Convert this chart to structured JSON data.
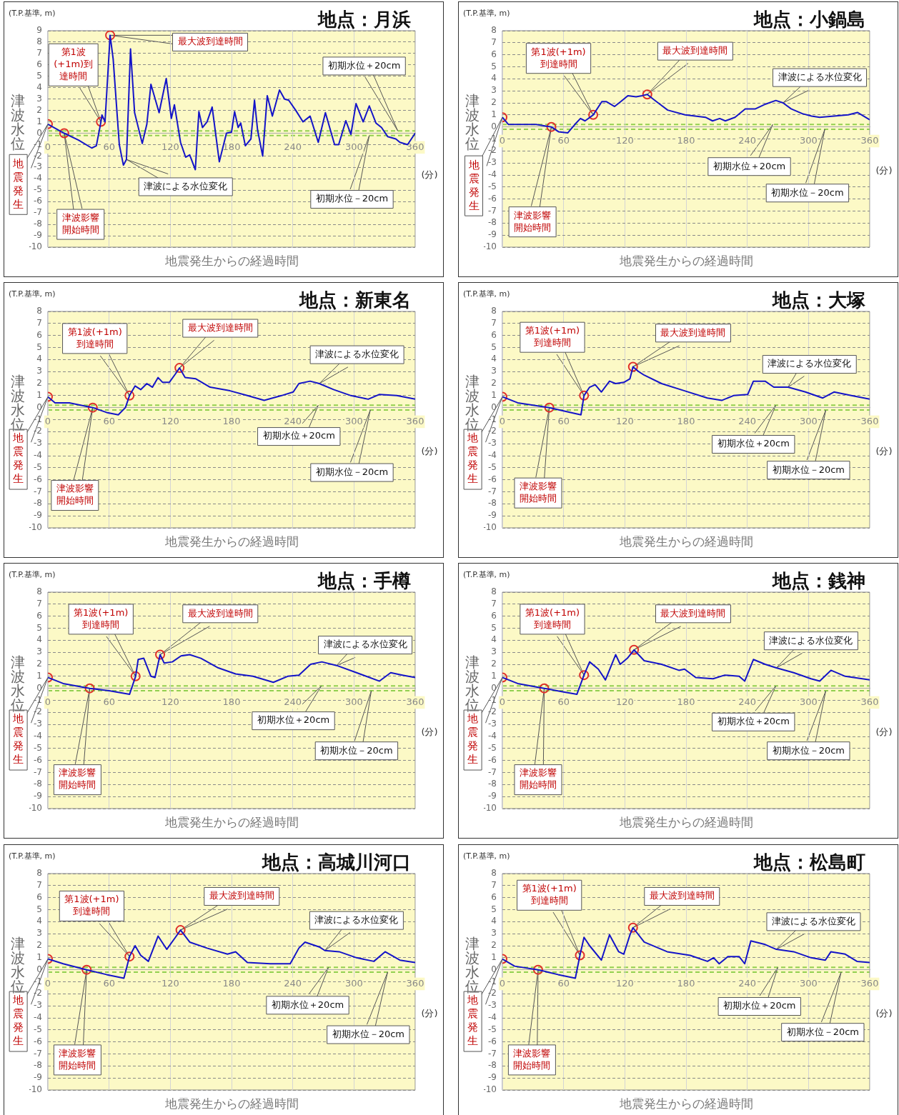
{
  "chart_data": [
    {
      "type": "line",
      "title": "地点：月浜",
      "ylabel": "津波水位",
      "xlabel": "地震発生からの経過時間",
      "xlim": [
        0,
        360
      ],
      "xticks": [
        0,
        60,
        120,
        180,
        240,
        300,
        360
      ],
      "ylim": [
        -10,
        9
      ],
      "yticks": [
        -10,
        -9,
        -8,
        -7,
        -6,
        -5,
        -4,
        -3,
        -2,
        -1,
        0,
        1,
        2,
        3,
        4,
        5,
        6,
        7,
        8,
        9
      ],
      "grid": true,
      "series": [
        {
          "type": "line",
          "color": "#1414c8",
          "x": [
            0,
            16,
            30,
            43,
            47.5,
            52,
            53,
            56,
            61,
            64,
            70,
            74,
            77,
            81,
            85,
            92.5,
            97,
            101,
            109,
            116,
            121,
            124,
            130,
            135,
            139,
            144.5,
            148,
            151.5,
            156,
            161,
            168,
            175,
            180,
            183,
            186.5,
            189,
            193.5,
            199,
            202.5,
            205.5,
            210.5,
            215,
            220,
            227,
            232,
            236,
            243,
            250,
            257,
            265,
            272,
            281,
            285,
            292,
            297,
            302,
            309,
            315,
            321.5,
            327,
            333,
            341,
            345,
            352.5,
            360
          ],
          "values": [
            0.8,
            0,
            -0.6,
            -1.3,
            -1.1,
            1.0,
            1.6,
            1.0,
            8.6,
            6.5,
            -1.0,
            -2.8,
            -2.3,
            7.4,
            1.8,
            -0.9,
            0.8,
            4.3,
            1.8,
            4.8,
            1.3,
            2.5,
            -0.8,
            -2.1,
            -1.9,
            -3.2,
            1.9,
            0.5,
            1.0,
            2.3,
            -2.5,
            0,
            0.1,
            1.9,
            0.5,
            0.9,
            -1.1,
            -0.5,
            2.9,
            0.3,
            -2.0,
            3.3,
            1.5,
            3.8,
            3.0,
            2.9,
            2.0,
            1.0,
            1.5,
            -0.8,
            1.8,
            -1.0,
            -1.0,
            1.1,
            -0.1,
            2.6,
            1.0,
            2.4,
            0.9,
            0.5,
            -0.3,
            -0.5,
            -0.8,
            -1.0,
            0
          ]
        },
        {
          "type": "scatter",
          "color": "#e0302a",
          "marker": "circle",
          "x": [
            0,
            16,
            52,
            61
          ],
          "values": [
            0.8,
            0,
            1.0,
            8.6
          ]
        }
      ],
      "ref_lines": [
        {
          "axis": "y",
          "value": 0.2,
          "color": "#92d050",
          "line_style": "dashed"
        },
        {
          "axis": "y",
          "value": -0.2,
          "color": "#92d050",
          "line_style": "dashed"
        }
      ],
      "annotations": [
        "地震発生",
        "津波影響開始時間",
        "第1波(+1m)到達時間",
        "最大波到達時間",
        {
          "text": "津波による水位変化",
          "x": 77,
          "y": -2.3
        },
        "(T.P.基準, m)",
        "(分)",
        "初期水位＋20cm",
        "初期水位－20cm"
      ]
    },
    {
      "type": "line",
      "title": "地点：小鍋島",
      "ylabel": "津波水位",
      "xlabel": "地震発生からの経過時間",
      "xlim": [
        0,
        360
      ],
      "xticks": [
        0,
        60,
        120,
        180,
        240,
        300,
        360
      ],
      "ylim": [
        -10,
        8
      ],
      "yticks": [
        -10,
        -9,
        -8,
        -7,
        -6,
        -5,
        -4,
        -3,
        -2,
        -1,
        0,
        1,
        2,
        3,
        4,
        5,
        6,
        7,
        8
      ],
      "grid": true,
      "series": [
        {
          "type": "line",
          "color": "#1414c8",
          "x": [
            0,
            6,
            16,
            33,
            48,
            55,
            64,
            71,
            76.5,
            81,
            89,
            97.5,
            102,
            110,
            116,
            123,
            131,
            137,
            142,
            151,
            162,
            179,
            199,
            206,
            213,
            218.5,
            228,
            238,
            248,
            258,
            268,
            275,
            283,
            294,
            303,
            311,
            325,
            339,
            348,
            360
          ],
          "values": [
            0.8,
            0.2,
            0.2,
            0.2,
            0,
            -0.4,
            -0.5,
            0.2,
            0.7,
            0.5,
            1.0,
            2.1,
            2.1,
            1.7,
            2.1,
            2.6,
            2.5,
            2.6,
            2.7,
            2.1,
            1.4,
            1.0,
            0.8,
            0.5,
            0.7,
            0.5,
            0.8,
            1.5,
            1.5,
            1.9,
            2.2,
            2.0,
            1.5,
            1.1,
            0.9,
            0.8,
            0.9,
            1.0,
            1.2,
            0.6
          ]
        },
        {
          "type": "scatter",
          "color": "#e0302a",
          "marker": "circle",
          "x": [
            0,
            48,
            89,
            142
          ],
          "values": [
            0.8,
            0,
            1.0,
            2.7
          ]
        }
      ],
      "ref_lines": [
        {
          "axis": "y",
          "value": 0.2,
          "color": "#92d050",
          "line_style": "dashed"
        },
        {
          "axis": "y",
          "value": -0.2,
          "color": "#92d050",
          "line_style": "dashed"
        }
      ],
      "annotations": [
        "地震発生",
        "津波影響開始時間",
        "第1波(+1m)到達時間",
        "最大波到達時間",
        {
          "text": "津波による水位変化",
          "x": 275,
          "y": 2.0
        },
        "(T.P.基準, m)",
        "(分)",
        "初期水位＋20cm",
        "初期水位－20cm"
      ]
    },
    {
      "type": "line",
      "title": "地点：新東名",
      "ylabel": "津波水位",
      "xlabel": "地震発生からの経過時間",
      "xlim": [
        0,
        360
      ],
      "xticks": [
        0,
        60,
        120,
        180,
        240,
        300,
        360
      ],
      "ylim": [
        -10,
        8
      ],
      "yticks": [
        -10,
        -9,
        -8,
        -7,
        -6,
        -5,
        -4,
        -3,
        -2,
        -1,
        0,
        1,
        2,
        3,
        4,
        5,
        6,
        7,
        8
      ],
      "grid": true,
      "series": [
        {
          "type": "line",
          "color": "#1414c8",
          "x": [
            0,
            7,
            21,
            44,
            57.5,
            69,
            76,
            80,
            85.5,
            91,
            97,
            102.5,
            108,
            112.5,
            119,
            125,
            129,
            134.5,
            145,
            159,
            178.5,
            195.5,
            212,
            229,
            240.5,
            246,
            257,
            266,
            280,
            297,
            314,
            325,
            342,
            360
          ],
          "values": [
            0.9,
            0.4,
            0.4,
            0,
            -0.4,
            -0.6,
            0,
            1.0,
            1.8,
            1.5,
            2.0,
            1.7,
            2.5,
            2.1,
            2.1,
            2.8,
            3.3,
            2.5,
            2.4,
            1.7,
            1.4,
            1.0,
            0.6,
            1.0,
            1.3,
            2.0,
            2.2,
            2.0,
            1.5,
            1.0,
            0.7,
            1.1,
            1.0,
            0.7
          ]
        },
        {
          "type": "scatter",
          "color": "#e0302a",
          "marker": "circle",
          "x": [
            0,
            44,
            80,
            129
          ],
          "values": [
            0.9,
            0,
            1.0,
            3.3
          ]
        }
      ],
      "ref_lines": [
        {
          "axis": "y",
          "value": 0.2,
          "color": "#92d050",
          "line_style": "dashed"
        },
        {
          "axis": "y",
          "value": -0.2,
          "color": "#92d050",
          "line_style": "dashed"
        }
      ],
      "annotations": [
        "地震発生",
        "津波影響開始時間",
        "第1波(+1m)到達時間",
        "最大波到達時間",
        {
          "text": "津波による水位変化",
          "x": 266,
          "y": 2.0
        },
        "(T.P.基準, m)",
        "(分)",
        "初期水位＋20cm",
        "初期水位－20cm"
      ]
    },
    {
      "type": "line",
      "title": "地点：大塚",
      "ylabel": "津波水位",
      "xlabel": "地震発生からの経過時間",
      "xlim": [
        0,
        360
      ],
      "xticks": [
        0,
        60,
        120,
        180,
        240,
        300,
        360
      ],
      "ylim": [
        -10,
        8
      ],
      "yticks": [
        -10,
        -9,
        -8,
        -7,
        -6,
        -5,
        -4,
        -3,
        -2,
        -1,
        0,
        1,
        2,
        3,
        4,
        5,
        6,
        7,
        8
      ],
      "grid": true,
      "series": [
        {
          "type": "line",
          "color": "#1414c8",
          "x": [
            0,
            15,
            46,
            71.5,
            77,
            80,
            85.5,
            91,
            97,
            105,
            111,
            119,
            125,
            128,
            133.5,
            139,
            156,
            178.5,
            201,
            215,
            226.5,
            240.5,
            246,
            257.5,
            266,
            280,
            297,
            314,
            325,
            342,
            360
          ],
          "values": [
            0.9,
            0.4,
            0,
            -0.5,
            -0.6,
            1.0,
            1.7,
            1.9,
            1.3,
            2.2,
            2.0,
            2.1,
            2.4,
            3.4,
            3.0,
            2.7,
            2.0,
            1.4,
            0.8,
            0.6,
            1.0,
            1.1,
            2.2,
            2.2,
            1.7,
            1.7,
            1.3,
            0.8,
            1.3,
            1.0,
            0.7
          ]
        },
        {
          "type": "scatter",
          "color": "#e0302a",
          "marker": "circle",
          "x": [
            0,
            46,
            80,
            128
          ],
          "values": [
            0.9,
            0,
            1.0,
            3.4
          ]
        }
      ],
      "ref_lines": [
        {
          "axis": "y",
          "value": 0.2,
          "color": "#92d050",
          "line_style": "dashed"
        },
        {
          "axis": "y",
          "value": -0.2,
          "color": "#92d050",
          "line_style": "dashed"
        }
      ],
      "annotations": [
        "地震発生",
        "津波影響開始時間",
        "第1波(+1m)到達時間",
        "最大波到達時間",
        {
          "text": "津波による水位変化",
          "x": 280,
          "y": 1.7
        },
        "(T.P.基準, m)",
        "(分)",
        "初期水位＋20cm",
        "初期水位－20cm"
      ]
    },
    {
      "type": "line",
      "title": "地点：手樽",
      "ylabel": "津波水位",
      "xlabel": "地震発生からの経過時間",
      "xlim": [
        0,
        360
      ],
      "xticks": [
        0,
        60,
        120,
        180,
        240,
        300,
        360
      ],
      "ylim": [
        -10,
        8
      ],
      "yticks": [
        -10,
        -9,
        -8,
        -7,
        -6,
        -5,
        -4,
        -3,
        -2,
        -1,
        0,
        1,
        2,
        3,
        4,
        5,
        6,
        7,
        8
      ],
      "grid": true,
      "series": [
        {
          "type": "line",
          "color": "#1414c8",
          "x": [
            0,
            15,
            41,
            60,
            80,
            86,
            88.5,
            94,
            101,
            105,
            110,
            114,
            122,
            130.5,
            139,
            150,
            167,
            184,
            201,
            221,
            235,
            246,
            257.5,
            268.5,
            283,
            302.5,
            325,
            336,
            347.5,
            360
          ],
          "values": [
            0.9,
            0.4,
            0,
            -0.2,
            -0.5,
            1.0,
            2.4,
            2.5,
            1.0,
            0.9,
            2.8,
            2.1,
            2.2,
            2.7,
            2.8,
            2.5,
            1.7,
            1.2,
            1.0,
            0.5,
            1.0,
            1.1,
            2.0,
            2.2,
            1.9,
            1.3,
            0.6,
            1.3,
            1.1,
            0.9
          ]
        },
        {
          "type": "scatter",
          "color": "#e0302a",
          "marker": "circle",
          "x": [
            0,
            41,
            86,
            110
          ],
          "values": [
            0.9,
            0,
            1.0,
            2.8
          ]
        }
      ],
      "ref_lines": [
        {
          "axis": "y",
          "value": 0.2,
          "color": "#92d050",
          "line_style": "dashed"
        },
        {
          "axis": "y",
          "value": -0.2,
          "color": "#92d050",
          "line_style": "dashed"
        }
      ],
      "annotations": [
        "地震発生",
        "津波影響開始時間",
        "第1波(+1m)到達時間",
        "最大波到達時間",
        {
          "text": "津波による水位変化",
          "x": 283,
          "y": 1.9
        },
        "(T.P.基準, m)",
        "(分)",
        "初期水位＋20cm",
        "初期水位－20cm"
      ]
    },
    {
      "type": "line",
      "title": "地点：銭神",
      "ylabel": "津波水位",
      "xlabel": "地震発生からの経過時間",
      "xlim": [
        0,
        360
      ],
      "xticks": [
        0,
        60,
        120,
        180,
        240,
        300,
        360
      ],
      "ylim": [
        -10,
        8
      ],
      "yticks": [
        -10,
        -9,
        -8,
        -7,
        -6,
        -5,
        -4,
        -3,
        -2,
        -1,
        0,
        1,
        2,
        3,
        4,
        5,
        6,
        7,
        8
      ],
      "grid": true,
      "series": [
        {
          "type": "line",
          "color": "#1414c8",
          "x": [
            0,
            15,
            41,
            60,
            73,
            80,
            85.5,
            94,
            101,
            111,
            115.5,
            122.5,
            129,
            139,
            156,
            173,
            178.5,
            189.5,
            206.5,
            218,
            232,
            237.5,
            246,
            257.5,
            268.5,
            285.5,
            302.5,
            311,
            322,
            336,
            360
          ],
          "values": [
            0.9,
            0.4,
            0,
            -0.3,
            -0.5,
            1.1,
            2.2,
            1.6,
            0.7,
            2.8,
            2.0,
            2.5,
            3.2,
            2.3,
            2.0,
            1.5,
            1.6,
            0.9,
            0.8,
            1.1,
            1.0,
            0.6,
            2.4,
            2.0,
            1.7,
            1.3,
            0.8,
            0.6,
            1.5,
            1.0,
            0.7
          ]
        },
        {
          "type": "scatter",
          "color": "#e0302a",
          "marker": "circle",
          "x": [
            0,
            41,
            80,
            129
          ],
          "values": [
            0.9,
            0,
            1.1,
            3.2
          ]
        }
      ],
      "ref_lines": [
        {
          "axis": "y",
          "value": 0.2,
          "color": "#92d050",
          "line_style": "dashed"
        },
        {
          "axis": "y",
          "value": -0.2,
          "color": "#92d050",
          "line_style": "dashed"
        }
      ],
      "annotations": [
        "地震発生",
        "津波影響開始時間",
        "第1波(+1m)到達時間",
        "最大波到達時間",
        {
          "text": "津波による水位変化",
          "x": 268.5,
          "y": 1.7
        },
        "(T.P.基準, m)",
        "(分)",
        "初期水位＋20cm",
        "初期水位－20cm"
      ]
    },
    {
      "type": "line",
      "title": "地点：高城川河口",
      "ylabel": "津波水位",
      "xlabel": "地震発生からの経過時間",
      "xlim": [
        0,
        360
      ],
      "xticks": [
        0,
        60,
        120,
        180,
        240,
        300,
        360
      ],
      "ylim": [
        -10,
        8
      ],
      "yticks": [
        -10,
        -9,
        -8,
        -7,
        -6,
        -5,
        -4,
        -3,
        -2,
        -1,
        0,
        1,
        2,
        3,
        4,
        5,
        6,
        7,
        8
      ],
      "grid": true,
      "series": [
        {
          "type": "line",
          "color": "#1414c8",
          "x": [
            0,
            15,
            38,
            57.5,
            74.5,
            80,
            85.5,
            91,
            98.5,
            108,
            116.5,
            125,
            130,
            139,
            156,
            176,
            184,
            195.5,
            218,
            237.5,
            246,
            252,
            266,
            271.5,
            285.5,
            302.5,
            319.5,
            330.5,
            345,
            360
          ],
          "values": [
            0.9,
            0.5,
            0,
            -0.4,
            -0.7,
            1.1,
            2.0,
            1.2,
            0.7,
            2.8,
            1.7,
            2.7,
            3.3,
            2.3,
            1.8,
            1.3,
            1.5,
            0.6,
            0.5,
            0.5,
            1.8,
            2.3,
            1.9,
            1.6,
            1.5,
            1.0,
            0.7,
            1.5,
            0.8,
            0.6
          ]
        },
        {
          "type": "scatter",
          "color": "#e0302a",
          "marker": "circle",
          "x": [
            0,
            38,
            80,
            130
          ],
          "values": [
            0.9,
            0,
            1.1,
            3.3
          ]
        }
      ],
      "ref_lines": [
        {
          "axis": "y",
          "value": 0.2,
          "color": "#92d050",
          "line_style": "dashed"
        },
        {
          "axis": "y",
          "value": -0.2,
          "color": "#92d050",
          "line_style": "dashed"
        }
      ],
      "annotations": [
        "地震発生",
        "津波影響開始時間",
        "第1波(+1m)到達時間",
        "最大波到達時間",
        {
          "text": "津波による水位変化",
          "x": 271.5,
          "y": 1.6
        },
        "(T.P.基準, m)",
        "(分)",
        "初期水位＋20cm",
        "初期水位－20cm"
      ]
    },
    {
      "type": "line",
      "title": "地点：松島町",
      "ylabel": "津波水位",
      "xlabel": "地震発生からの経過時間",
      "xlim": [
        0,
        360
      ],
      "xticks": [
        0,
        60,
        120,
        180,
        240,
        300,
        360
      ],
      "ylim": [
        -10,
        8
      ],
      "yticks": [
        -10,
        -9,
        -8,
        -7,
        -6,
        -5,
        -4,
        -3,
        -2,
        -1,
        0,
        1,
        2,
        3,
        4,
        5,
        6,
        7,
        8
      ],
      "grid": true,
      "series": [
        {
          "type": "line",
          "color": "#1414c8",
          "x": [
            0,
            12,
            35,
            54.5,
            71.5,
            76,
            80,
            85.5,
            97,
            105,
            114,
            119,
            125,
            128,
            139,
            161.5,
            184,
            201,
            207,
            212.5,
            221,
            232,
            237.5,
            243.5,
            257.5,
            268.5,
            285.5,
            302.5,
            316.5,
            322,
            336,
            347.5,
            360
          ],
          "values": [
            0.9,
            0.3,
            0,
            -0.4,
            -0.7,
            1.2,
            2.7,
            2.0,
            0.8,
            2.9,
            1.5,
            1.3,
            2.9,
            3.5,
            2.3,
            1.5,
            1.2,
            0.7,
            1.0,
            0.5,
            1.1,
            1.1,
            0.5,
            2.4,
            2.1,
            1.7,
            1.5,
            1.0,
            0.8,
            1.5,
            1.3,
            0.7,
            0.6
          ]
        },
        {
          "type": "scatter",
          "color": "#e0302a",
          "marker": "circle",
          "x": [
            0,
            35,
            76,
            128
          ],
          "values": [
            0.9,
            0,
            1.2,
            3.5
          ]
        }
      ],
      "ref_lines": [
        {
          "axis": "y",
          "value": 0.2,
          "color": "#92d050",
          "line_style": "dashed"
        },
        {
          "axis": "y",
          "value": -0.2,
          "color": "#92d050",
          "line_style": "dashed"
        }
      ],
      "annotations": [
        "地震発生",
        "津波影響開始時間",
        "第1波(+1m)到達時間",
        "最大波到達時間",
        {
          "text": "津波による水位変化",
          "x": 268.5,
          "y": 1.7
        },
        "(T.P.基準, m)",
        "(分)",
        "初期水位＋20cm",
        "初期水位－20cm"
      ]
    }
  ]
}
